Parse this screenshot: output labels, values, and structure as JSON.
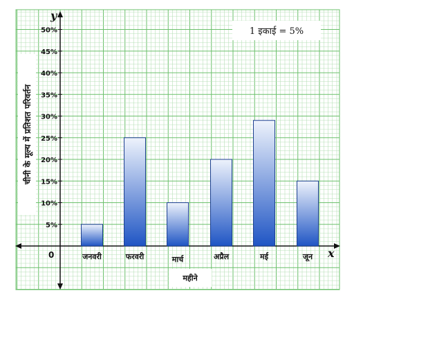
{
  "chart_data": {
    "type": "bar",
    "categories": [
      "जनवरी",
      "फरवरी",
      "मार्च",
      "अप्रैल",
      "मई",
      "जून"
    ],
    "values": [
      5,
      25,
      10,
      20,
      29,
      15
    ],
    "y_ticks": [
      "5%",
      "10%",
      "15%",
      "20%",
      "25%",
      "30%",
      "35%",
      "40%",
      "45%",
      "50%"
    ],
    "ylim": [
      0,
      55
    ],
    "ylabel": "चीनी के मूल्य में प्रतिशत परिवर्तन",
    "xlabel": "महीने",
    "x_axis_letter": "x",
    "y_axis_letter": "y",
    "origin_label": "0",
    "unit_note": "1 इकाई = 5%",
    "grid": true,
    "colors": {
      "grid_minor": "#b8e0b8",
      "grid_major": "#6cc06c",
      "bar_top": "#eef3fc",
      "bar_bottom": "#1f55c4",
      "bar_stroke": "#1b3f8f"
    }
  }
}
